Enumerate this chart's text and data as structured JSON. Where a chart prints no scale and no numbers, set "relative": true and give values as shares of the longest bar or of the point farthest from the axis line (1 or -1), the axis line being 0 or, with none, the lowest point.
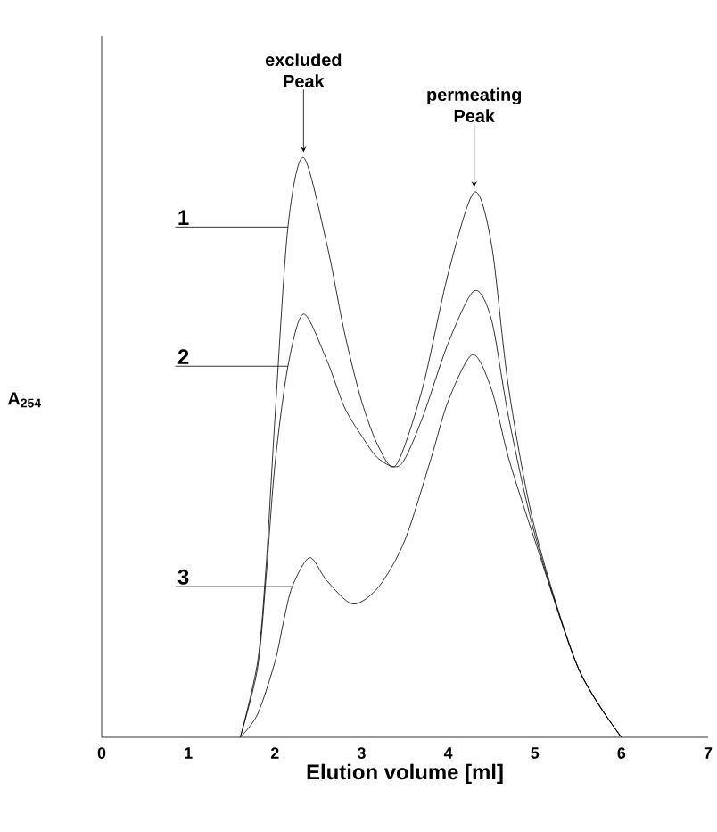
{
  "chart_data": {
    "type": "line",
    "relative": true,
    "xlabel": "Elution volume [ml]",
    "ylabel": "A$_{254}$",
    "xlim": [
      0,
      7
    ],
    "xticks": [
      0,
      1,
      2,
      3,
      4,
      5,
      6,
      7
    ],
    "series": [
      {
        "name": "1",
        "color": "#000000",
        "x": [
          1.6,
          1.8,
          1.9,
          2.0,
          2.15,
          2.33,
          2.6,
          2.8,
          3.0,
          3.2,
          3.4,
          3.7,
          4.0,
          4.3,
          4.5,
          4.7,
          5.0,
          5.5,
          6.0
        ],
        "values": [
          0,
          0.13,
          0.3,
          0.55,
          0.88,
          1.0,
          0.85,
          0.7,
          0.58,
          0.5,
          0.47,
          0.6,
          0.8,
          0.94,
          0.85,
          0.6,
          0.36,
          0.12,
          0
        ]
      },
      {
        "name": "2",
        "color": "#000000",
        "x": [
          1.6,
          1.8,
          1.9,
          2.0,
          2.15,
          2.33,
          2.6,
          2.8,
          3.0,
          3.2,
          3.45,
          3.7,
          4.0,
          4.3,
          4.5,
          4.7,
          5.0,
          5.5,
          6.0
        ],
        "values": [
          0,
          0.12,
          0.28,
          0.47,
          0.64,
          0.73,
          0.65,
          0.57,
          0.52,
          0.48,
          0.47,
          0.55,
          0.68,
          0.77,
          0.72,
          0.55,
          0.35,
          0.12,
          0
        ]
      },
      {
        "name": "3",
        "color": "#000000",
        "x": [
          1.6,
          1.8,
          2.0,
          2.1,
          2.2,
          2.4,
          2.6,
          2.9,
          3.2,
          3.5,
          3.8,
          4.0,
          4.28,
          4.5,
          4.7,
          5.0,
          5.5,
          6.0
        ],
        "values": [
          0,
          0.04,
          0.13,
          0.2,
          0.26,
          0.31,
          0.27,
          0.23,
          0.26,
          0.34,
          0.48,
          0.58,
          0.66,
          0.6,
          0.48,
          0.34,
          0.12,
          0
        ]
      }
    ],
    "annotations": [
      {
        "text": "excluded Peak",
        "x": 2.33,
        "y": 1.0
      },
      {
        "text": "permeating Peak",
        "x": 4.3,
        "y": 0.94
      }
    ]
  }
}
